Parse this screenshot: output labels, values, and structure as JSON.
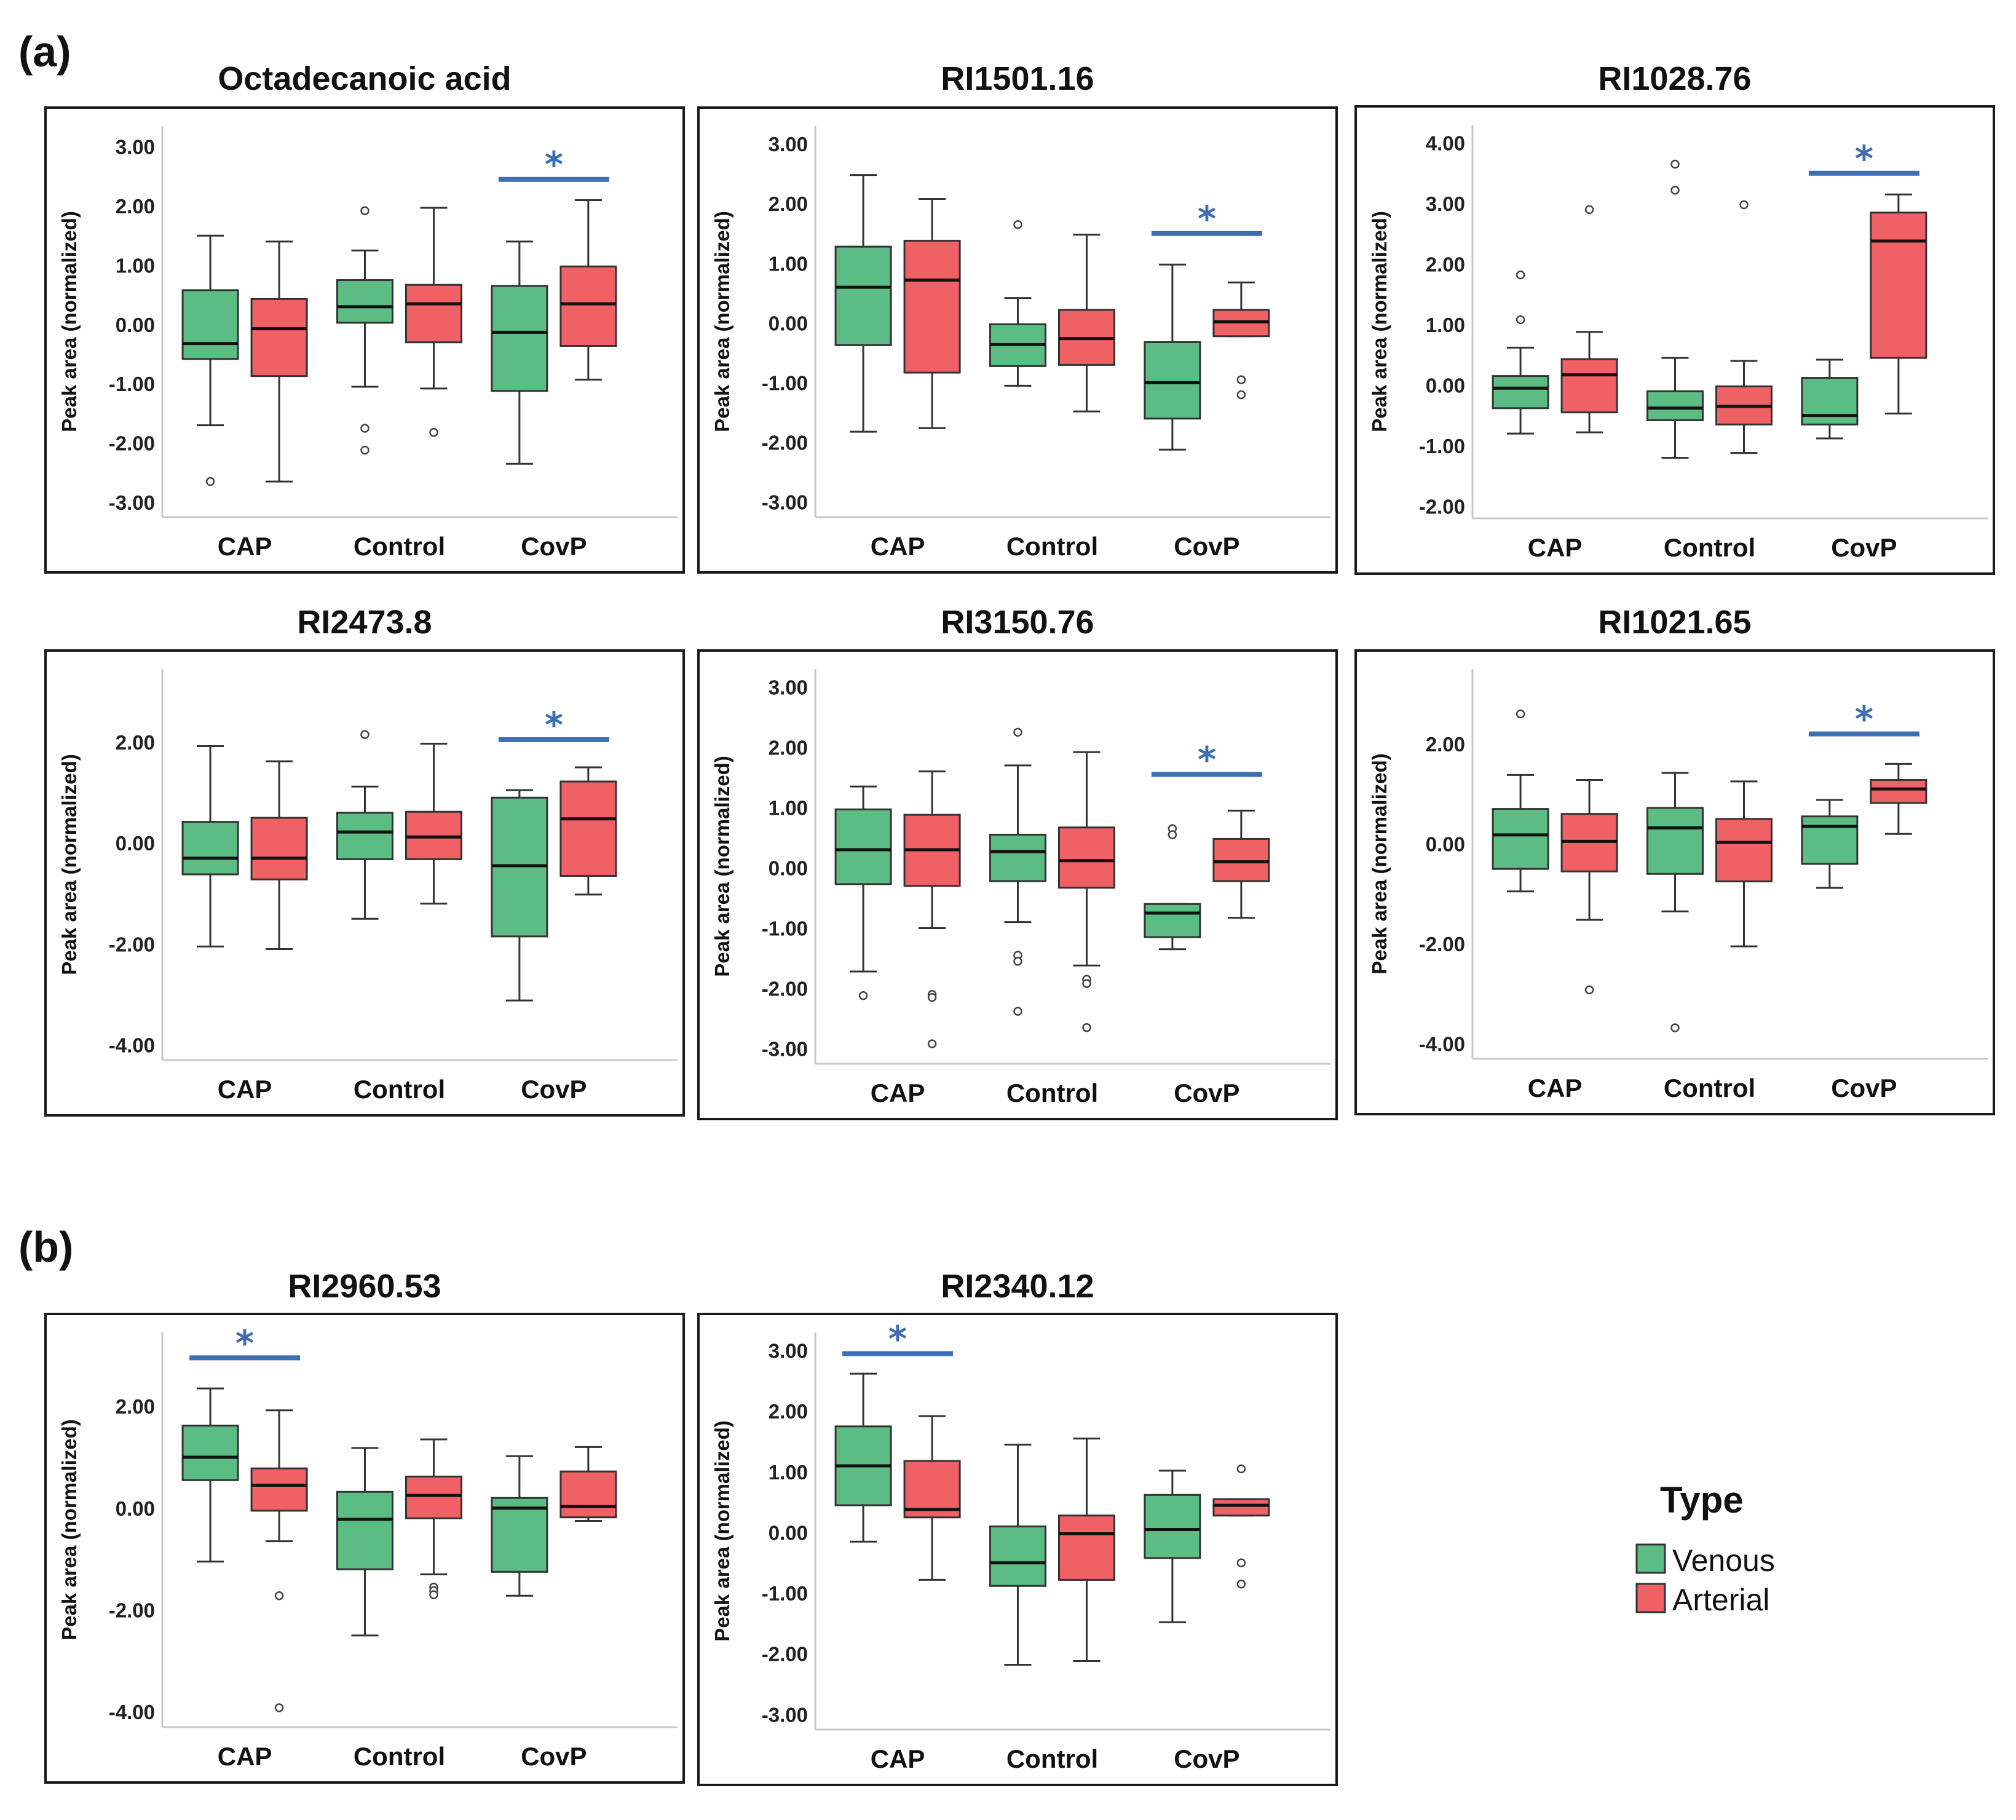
{
  "panels": [
    {
      "label": "(a)"
    },
    {
      "label": "(b)"
    }
  ],
  "legend": {
    "title": "Type",
    "items": [
      {
        "name": "Venous",
        "color": "#5bbd84"
      },
      {
        "name": "Arterial",
        "color": "#ef6164"
      }
    ]
  },
  "colors": {
    "venous": "#5bbd84",
    "arterial": "#ef6164",
    "significance": "#3c6eb4",
    "box_line": "#333333"
  },
  "chart_data": [
    {
      "type": "box",
      "title": "Octadecanoic acid",
      "ylabel": "Peak area (normalized)",
      "yticks": [
        "3.00",
        "2.00",
        "1.00",
        "0.00",
        "-1.00",
        "-2.00",
        "-3.00"
      ],
      "tick_values": [
        3,
        2,
        1,
        0,
        -1,
        -2,
        -3
      ],
      "ylim": [
        -3.25,
        3.35
      ],
      "categories": [
        "CAP",
        "Control",
        "CovP"
      ],
      "series": [
        {
          "name": "Venous",
          "boxes": [
            {
              "min": -1.7,
              "q1": -0.58,
              "median": -0.32,
              "q3": 0.58,
              "max": 1.5,
              "outliers": [
                -2.65
              ]
            },
            {
              "min": -1.05,
              "q1": 0.03,
              "median": 0.3,
              "q3": 0.75,
              "max": 1.25,
              "outliers": [
                1.92,
                -1.75,
                -2.12
              ]
            },
            {
              "min": -2.35,
              "q1": -1.12,
              "median": -0.13,
              "q3": 0.65,
              "max": 1.4,
              "outliers": []
            }
          ]
        },
        {
          "name": "Arterial",
          "boxes": [
            {
              "min": -2.65,
              "q1": -0.87,
              "median": -0.07,
              "q3": 0.43,
              "max": 1.4,
              "outliers": []
            },
            {
              "min": -1.08,
              "q1": -0.3,
              "median": 0.35,
              "q3": 0.67,
              "max": 1.97,
              "outliers": [
                -1.82
              ]
            },
            {
              "min": -0.93,
              "q1": -0.36,
              "median": 0.35,
              "q3": 0.98,
              "max": 2.1,
              "outliers": []
            }
          ]
        }
      ],
      "significance": [
        {
          "category": "CovP",
          "label": "*",
          "y": 2.45
        }
      ]
    },
    {
      "type": "box",
      "title": "RI1501.16",
      "ylabel": "Peak area (normalized)",
      "yticks": [
        "3.00",
        "2.00",
        "1.00",
        "0.00",
        "-1.00",
        "-2.00",
        "-3.00"
      ],
      "tick_values": [
        3,
        2,
        1,
        0,
        -1,
        -2,
        -3
      ],
      "ylim": [
        -3.25,
        3.3
      ],
      "categories": [
        "CAP",
        "Control",
        "CovP"
      ],
      "series": [
        {
          "name": "Venous",
          "boxes": [
            {
              "min": -1.82,
              "q1": -0.37,
              "median": 0.6,
              "q3": 1.28,
              "max": 2.48,
              "outliers": []
            },
            {
              "min": -1.05,
              "q1": -0.72,
              "median": -0.36,
              "q3": -0.02,
              "max": 0.42,
              "outliers": [
                1.65
              ]
            },
            {
              "min": -2.12,
              "q1": -1.6,
              "median": -1.0,
              "q3": -0.32,
              "max": 0.98,
              "outliers": []
            }
          ]
        },
        {
          "name": "Arterial",
          "boxes": [
            {
              "min": -1.76,
              "q1": -0.83,
              "median": 0.72,
              "q3": 1.38,
              "max": 2.08,
              "outliers": []
            },
            {
              "min": -1.48,
              "q1": -0.7,
              "median": -0.26,
              "q3": 0.22,
              "max": 1.48,
              "outliers": []
            },
            {
              "min": -0.22,
              "q1": -0.22,
              "median": 0.02,
              "q3": 0.22,
              "max": 0.68,
              "outliers": [
                -0.95,
                -1.2
              ]
            }
          ]
        }
      ],
      "significance": [
        {
          "category": "CovP",
          "label": "*",
          "y": 1.5
        }
      ]
    },
    {
      "type": "box",
      "title": "RI1028.76",
      "ylabel": "Peak area (normalized)",
      "yticks": [
        "4.00",
        "3.00",
        "2.00",
        "1.00",
        "0.00",
        "-1.00",
        "-2.00"
      ],
      "tick_values": [
        4,
        3,
        2,
        1,
        0,
        -1,
        -2
      ],
      "ylim": [
        -2.2,
        4.3
      ],
      "categories": [
        "CAP",
        "Control",
        "CovP"
      ],
      "series": [
        {
          "name": "Venous",
          "boxes": [
            {
              "min": -0.8,
              "q1": -0.38,
              "median": -0.05,
              "q3": 0.15,
              "max": 0.62,
              "outliers": [
                1.82,
                1.08
              ]
            },
            {
              "min": -1.2,
              "q1": -0.58,
              "median": -0.38,
              "q3": -0.1,
              "max": 0.45,
              "outliers": [
                3.65,
                3.22
              ]
            },
            {
              "min": -0.88,
              "q1": -0.65,
              "median": -0.5,
              "q3": 0.12,
              "max": 0.42,
              "outliers": []
            }
          ]
        },
        {
          "name": "Arterial",
          "boxes": [
            {
              "min": -0.78,
              "q1": -0.45,
              "median": 0.17,
              "q3": 0.43,
              "max": 0.88,
              "outliers": [
                2.9
              ]
            },
            {
              "min": -1.12,
              "q1": -0.65,
              "median": -0.35,
              "q3": -0.02,
              "max": 0.4,
              "outliers": [
                2.98
              ]
            },
            {
              "min": -0.47,
              "q1": 0.45,
              "median": 2.38,
              "q3": 2.85,
              "max": 3.15,
              "outliers": []
            }
          ]
        }
      ],
      "significance": [
        {
          "category": "CovP",
          "label": "*",
          "y": 3.5
        }
      ]
    },
    {
      "type": "box",
      "title": "RI2473.8",
      "ylabel": "Peak area (normalized)",
      "yticks": [
        "2.00",
        "0.00",
        "-2.00",
        "-4.00"
      ],
      "tick_values": [
        2,
        0,
        -2,
        -4
      ],
      "ylim": [
        -4.3,
        3.45
      ],
      "categories": [
        "CAP",
        "Control",
        "CovP"
      ],
      "series": [
        {
          "name": "Venous",
          "boxes": [
            {
              "min": -2.05,
              "q1": -0.62,
              "median": -0.3,
              "q3": 0.42,
              "max": 1.92,
              "outliers": []
            },
            {
              "min": -1.5,
              "q1": -0.32,
              "median": 0.22,
              "q3": 0.6,
              "max": 1.12,
              "outliers": [
                2.15
              ]
            },
            {
              "min": -3.12,
              "q1": -1.85,
              "median": -0.45,
              "q3": 0.9,
              "max": 1.05,
              "outliers": []
            }
          ]
        },
        {
          "name": "Arterial",
          "boxes": [
            {
              "min": -2.1,
              "q1": -0.72,
              "median": -0.3,
              "q3": 0.5,
              "max": 1.62,
              "outliers": []
            },
            {
              "min": -1.2,
              "q1": -0.32,
              "median": 0.12,
              "q3": 0.62,
              "max": 1.97,
              "outliers": []
            },
            {
              "min": -1.02,
              "q1": -0.65,
              "median": 0.48,
              "q3": 1.22,
              "max": 1.5,
              "outliers": []
            }
          ]
        }
      ],
      "significance": [
        {
          "category": "CovP",
          "label": "*",
          "y": 2.05
        }
      ]
    },
    {
      "type": "box",
      "title": "RI3150.76",
      "ylabel": "Peak area (normalized)",
      "yticks": [
        "3.00",
        "2.00",
        "1.00",
        "0.00",
        "-1.00",
        "-2.00",
        "-3.00"
      ],
      "tick_values": [
        3,
        2,
        1,
        0,
        -1,
        -2,
        -3
      ],
      "ylim": [
        -3.25,
        3.3
      ],
      "categories": [
        "CAP",
        "Control",
        "CovP"
      ],
      "series": [
        {
          "name": "Venous",
          "boxes": [
            {
              "min": -1.72,
              "q1": -0.27,
              "median": 0.3,
              "q3": 0.97,
              "max": 1.35,
              "outliers": [
                -2.12
              ]
            },
            {
              "min": -0.9,
              "q1": -0.22,
              "median": 0.27,
              "q3": 0.55,
              "max": 1.7,
              "outliers": [
                2.25,
                -1.45,
                -1.55,
                -2.38
              ]
            },
            {
              "min": -1.35,
              "q1": -1.15,
              "median": -0.75,
              "q3": -0.6,
              "max": -0.6,
              "outliers": [
                0.65,
                0.55
              ]
            }
          ]
        },
        {
          "name": "Arterial",
          "boxes": [
            {
              "min": -1.0,
              "q1": -0.3,
              "median": 0.3,
              "q3": 0.88,
              "max": 1.6,
              "outliers": [
                -2.1,
                -2.15,
                -2.92
              ]
            },
            {
              "min": -1.62,
              "q1": -0.33,
              "median": 0.12,
              "q3": 0.67,
              "max": 1.92,
              "outliers": [
                -1.85,
                -1.92,
                -2.65
              ]
            },
            {
              "min": -0.83,
              "q1": -0.22,
              "median": 0.1,
              "q3": 0.48,
              "max": 0.95,
              "outliers": []
            }
          ]
        }
      ],
      "significance": [
        {
          "category": "CovP",
          "label": "*",
          "y": 1.55
        }
      ]
    },
    {
      "type": "box",
      "title": "RI1021.65",
      "ylabel": "Peak area (normalized)",
      "yticks": [
        "2.00",
        "0.00",
        "-2.00",
        "-4.00"
      ],
      "tick_values": [
        2,
        0,
        -2,
        -4
      ],
      "ylim": [
        -4.3,
        3.5
      ],
      "categories": [
        "CAP",
        "Control",
        "CovP"
      ],
      "series": [
        {
          "name": "Venous",
          "boxes": [
            {
              "min": -0.95,
              "q1": -0.5,
              "median": 0.18,
              "q3": 0.7,
              "max": 1.38,
              "outliers": [
                2.6
              ]
            },
            {
              "min": -1.35,
              "q1": -0.6,
              "median": 0.32,
              "q3": 0.72,
              "max": 1.42,
              "outliers": [
                -3.68
              ]
            },
            {
              "min": -0.88,
              "q1": -0.4,
              "median": 0.35,
              "q3": 0.55,
              "max": 0.88,
              "outliers": []
            }
          ]
        },
        {
          "name": "Arterial",
          "boxes": [
            {
              "min": -1.52,
              "q1": -0.55,
              "median": 0.05,
              "q3": 0.6,
              "max": 1.28,
              "outliers": [
                -2.92
              ]
            },
            {
              "min": -2.05,
              "q1": -0.75,
              "median": 0.03,
              "q3": 0.5,
              "max": 1.25,
              "outliers": []
            },
            {
              "min": 0.2,
              "q1": 0.82,
              "median": 1.1,
              "q3": 1.28,
              "max": 1.6,
              "outliers": []
            }
          ]
        }
      ],
      "significance": [
        {
          "category": "CovP",
          "label": "*",
          "y": 2.2
        }
      ]
    },
    {
      "type": "box",
      "title": "RI2960.53",
      "ylabel": "Peak area (normalized)",
      "yticks": [
        "2.00",
        "0.00",
        "-2.00",
        "-4.00"
      ],
      "tick_values": [
        2,
        0,
        -2,
        -4
      ],
      "ylim": [
        -4.3,
        3.45
      ],
      "categories": [
        "CAP",
        "Control",
        "CovP"
      ],
      "series": [
        {
          "name": "Venous",
          "boxes": [
            {
              "min": -1.05,
              "q1": 0.55,
              "median": 1.0,
              "q3": 1.62,
              "max": 2.35,
              "outliers": []
            },
            {
              "min": -2.5,
              "q1": -1.2,
              "median": -0.22,
              "q3": 0.32,
              "max": 1.18,
              "outliers": []
            },
            {
              "min": -1.72,
              "q1": -1.25,
              "median": 0.0,
              "q3": 0.2,
              "max": 1.02,
              "outliers": []
            }
          ]
        },
        {
          "name": "Arterial",
          "boxes": [
            {
              "min": -0.65,
              "q1": -0.05,
              "median": 0.45,
              "q3": 0.78,
              "max": 1.92,
              "outliers": [
                -1.72,
                -3.92
              ]
            },
            {
              "min": -1.3,
              "q1": -0.2,
              "median": 0.25,
              "q3": 0.62,
              "max": 1.35,
              "outliers": [
                -1.55,
                -1.62,
                -1.7
              ]
            },
            {
              "min": -0.25,
              "q1": -0.18,
              "median": 0.03,
              "q3": 0.72,
              "max": 1.2,
              "outliers": []
            }
          ]
        }
      ],
      "significance": [
        {
          "category": "CAP",
          "label": "*",
          "y": 2.95
        }
      ]
    },
    {
      "type": "box",
      "title": "RI2340.12",
      "ylabel": "Peak area (normalized)",
      "yticks": [
        "3.00",
        "2.00",
        "1.00",
        "0.00",
        "-1.00",
        "-2.00",
        "-3.00"
      ],
      "tick_values": [
        3,
        2,
        1,
        0,
        -1,
        -2,
        -3
      ],
      "ylim": [
        -3.25,
        3.3
      ],
      "categories": [
        "CAP",
        "Control",
        "CovP"
      ],
      "series": [
        {
          "name": "Venous",
          "boxes": [
            {
              "min": -0.15,
              "q1": 0.45,
              "median": 1.1,
              "q3": 1.75,
              "max": 2.62,
              "outliers": []
            },
            {
              "min": -2.18,
              "q1": -0.88,
              "median": -0.5,
              "q3": 0.1,
              "max": 1.45,
              "outliers": []
            },
            {
              "min": -1.48,
              "q1": -0.42,
              "median": 0.05,
              "q3": 0.62,
              "max": 1.02,
              "outliers": []
            }
          ]
        },
        {
          "name": "Arterial",
          "boxes": [
            {
              "min": -0.78,
              "q1": 0.25,
              "median": 0.38,
              "q3": 1.18,
              "max": 1.92,
              "outliers": []
            },
            {
              "min": -2.12,
              "q1": -0.78,
              "median": -0.02,
              "q3": 0.28,
              "max": 1.55,
              "outliers": []
            },
            {
              "min": 0.28,
              "q1": 0.28,
              "median": 0.45,
              "q3": 0.55,
              "max": 0.55,
              "outliers": [
                1.05,
                -0.5,
                -0.85
              ]
            }
          ]
        }
      ],
      "significance": [
        {
          "category": "CAP",
          "label": "*",
          "y": 2.95
        }
      ]
    }
  ]
}
